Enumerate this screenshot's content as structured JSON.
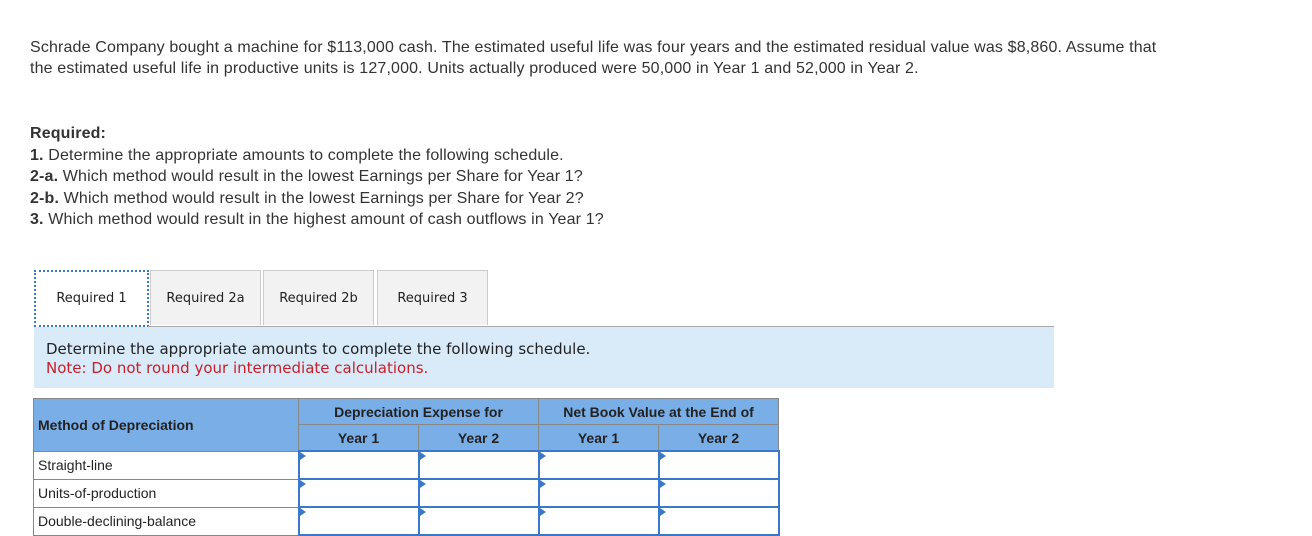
{
  "problem": "Schrade Company bought a machine for $113,000 cash. The estimated useful life was four years and the estimated residual value was $8,860. Assume that the estimated useful life in productive units is 127,000. Units actually produced were 50,000 in Year 1 and 52,000 in Year 2.",
  "required": {
    "title": "Required:",
    "items": [
      {
        "num": "1.",
        "text": " Determine the appropriate amounts to complete the following schedule."
      },
      {
        "num": "2-a.",
        "text": " Which method would result in the lowest Earnings per Share for Year 1?"
      },
      {
        "num": "2-b.",
        "text": " Which method would result in the lowest Earnings per Share for Year 2?"
      },
      {
        "num": "3.",
        "text": " Which method would result in the highest amount of cash outflows in Year 1?"
      }
    ]
  },
  "tabs": [
    {
      "label": "Required 1"
    },
    {
      "label": "Required 2a"
    },
    {
      "label": "Required 2b"
    },
    {
      "label": "Required 3"
    }
  ],
  "panel": {
    "instruction": "Determine the appropriate amounts to complete the following schedule.",
    "note": "Note: Do not round your intermediate calculations."
  },
  "table": {
    "method_header": "Method of Depreciation",
    "group1": "Depreciation Expense for",
    "group2": "Net Book Value at the End of",
    "years": [
      "Year 1",
      "Year 2",
      "Year 1",
      "Year 2"
    ],
    "rows": [
      "Straight-line",
      "Units-of-production",
      "Double-declining-balance"
    ]
  }
}
